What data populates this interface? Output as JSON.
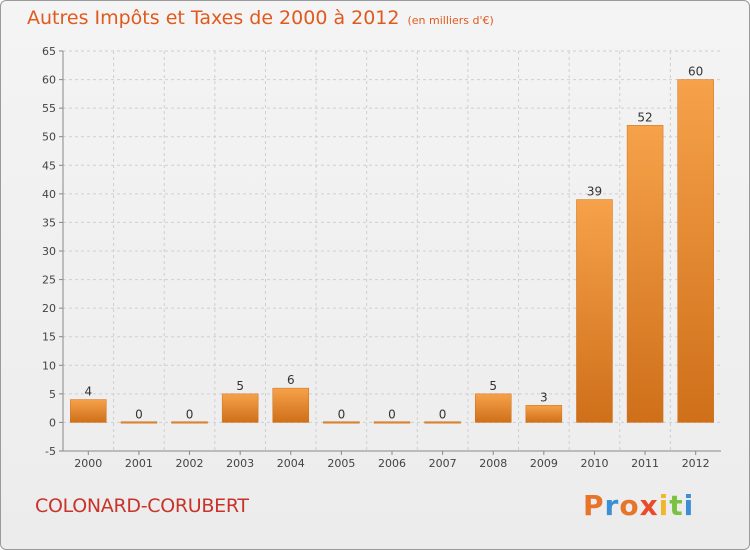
{
  "chart_data": {
    "type": "bar",
    "title": "Autres Impôts et Taxes de 2000 à 2012",
    "subtitle": "(en milliers d'€)",
    "categories": [
      "2000",
      "2001",
      "2002",
      "2003",
      "2004",
      "2005",
      "2006",
      "2007",
      "2008",
      "2009",
      "2010",
      "2011",
      "2012"
    ],
    "values": [
      4,
      0,
      0,
      5,
      6,
      0,
      0,
      0,
      5,
      3,
      39,
      52,
      60
    ],
    "data_labels": [
      "4",
      "0",
      "0",
      "5",
      "6",
      "0",
      "0",
      "0",
      "5",
      "3",
      "39",
      "52",
      "60"
    ],
    "ylim": [
      -5,
      65
    ],
    "yticks": [
      -5,
      0,
      5,
      10,
      15,
      20,
      25,
      30,
      35,
      40,
      45,
      50,
      55,
      60,
      65
    ],
    "grid": "horizontal dashed",
    "colors": {
      "bar_light": "#f6a24a",
      "bar_dark": "#cf6f1a",
      "label": "#333333",
      "grid": "#cfcfcf"
    }
  },
  "footer": {
    "commune": "COLONARD-CORUBERT",
    "brand": "Proxiti",
    "brand_colors": [
      "#e8742a",
      "#3a8fd6",
      "#e8742a",
      "#e84a2a",
      "#f2b62a",
      "#7cc242",
      "#3a8fd6"
    ]
  }
}
